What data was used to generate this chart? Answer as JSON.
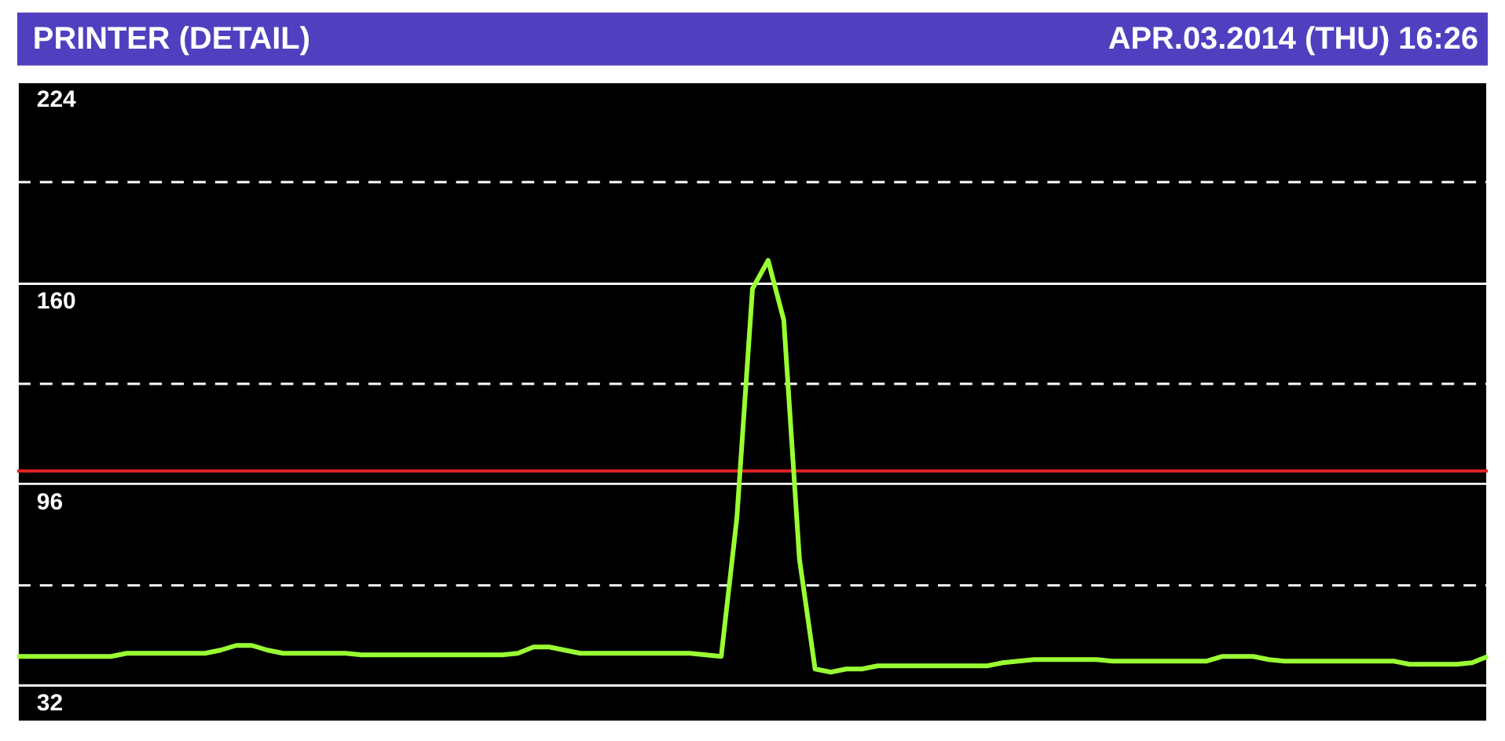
{
  "chart_data": {
    "type": "line",
    "title": "PRINTER (DETAIL)",
    "annotations": [
      "APR.03.2014 (THU)  16:26"
    ],
    "categories": [
      null,
      null,
      null,
      null,
      null,
      null,
      null,
      null,
      null,
      null,
      null,
      null,
      null,
      null,
      null,
      null,
      null,
      null,
      null,
      null,
      null,
      null,
      null,
      null,
      null,
      null,
      null,
      null,
      null,
      null,
      null,
      null,
      null,
      null,
      null,
      null,
      null,
      null,
      null,
      null,
      null,
      null,
      null,
      null,
      null,
      null,
      null,
      null,
      null,
      null,
      null,
      null,
      null,
      null,
      null,
      null,
      null,
      null,
      null,
      null,
      null,
      null,
      null,
      null,
      null,
      null,
      null,
      null,
      null,
      null,
      null,
      null,
      null,
      null,
      null,
      null,
      null,
      null,
      null,
      null,
      null,
      null,
      null,
      null,
      null,
      null,
      null,
      null,
      null,
      null,
      null,
      null,
      null,
      null,
      null
    ],
    "series": [
      {
        "color": "#99ff33",
        "values": [
          41,
          41,
          41,
          41,
          41,
          41,
          41,
          42,
          42,
          42,
          42,
          42,
          42,
          43,
          44.5,
          44.5,
          43,
          42,
          42,
          42,
          42,
          42,
          41.5,
          41.5,
          41.5,
          41.5,
          41.5,
          41.5,
          41.5,
          41.5,
          41.5,
          41.5,
          42,
          44,
          44,
          43,
          42,
          42,
          42,
          42,
          42,
          42,
          42,
          42,
          41.5,
          41,
          85,
          158,
          167,
          148,
          72,
          37,
          36,
          37,
          37,
          38,
          38,
          38,
          38,
          38,
          38,
          38,
          38,
          39,
          39.5,
          40,
          40,
          40,
          40,
          40,
          39.5,
          39.5,
          39.5,
          39.5,
          39.5,
          39.5,
          39.5,
          41,
          41,
          41,
          40,
          39.5,
          39.5,
          39.5,
          39.5,
          39.5,
          39.5,
          39.5,
          39.5,
          38.5,
          38.5,
          38.5,
          38.5,
          39,
          41
        ]
      }
    ],
    "ylim": [
      32,
      224
    ],
    "yticks": [
      32,
      {
        "value": 64,
        "label": null
      },
      96,
      {
        "value": 128,
        "label": null
      },
      160,
      {
        "value": 192,
        "label": null
      },
      224
    ],
    "ref_lines": [
      {
        "axis": "y",
        "value": 100,
        "color": "#dd2222"
      }
    ],
    "grid": true,
    "marker": "none",
    "line_style": "solid",
    "tick_labels": "y"
  }
}
